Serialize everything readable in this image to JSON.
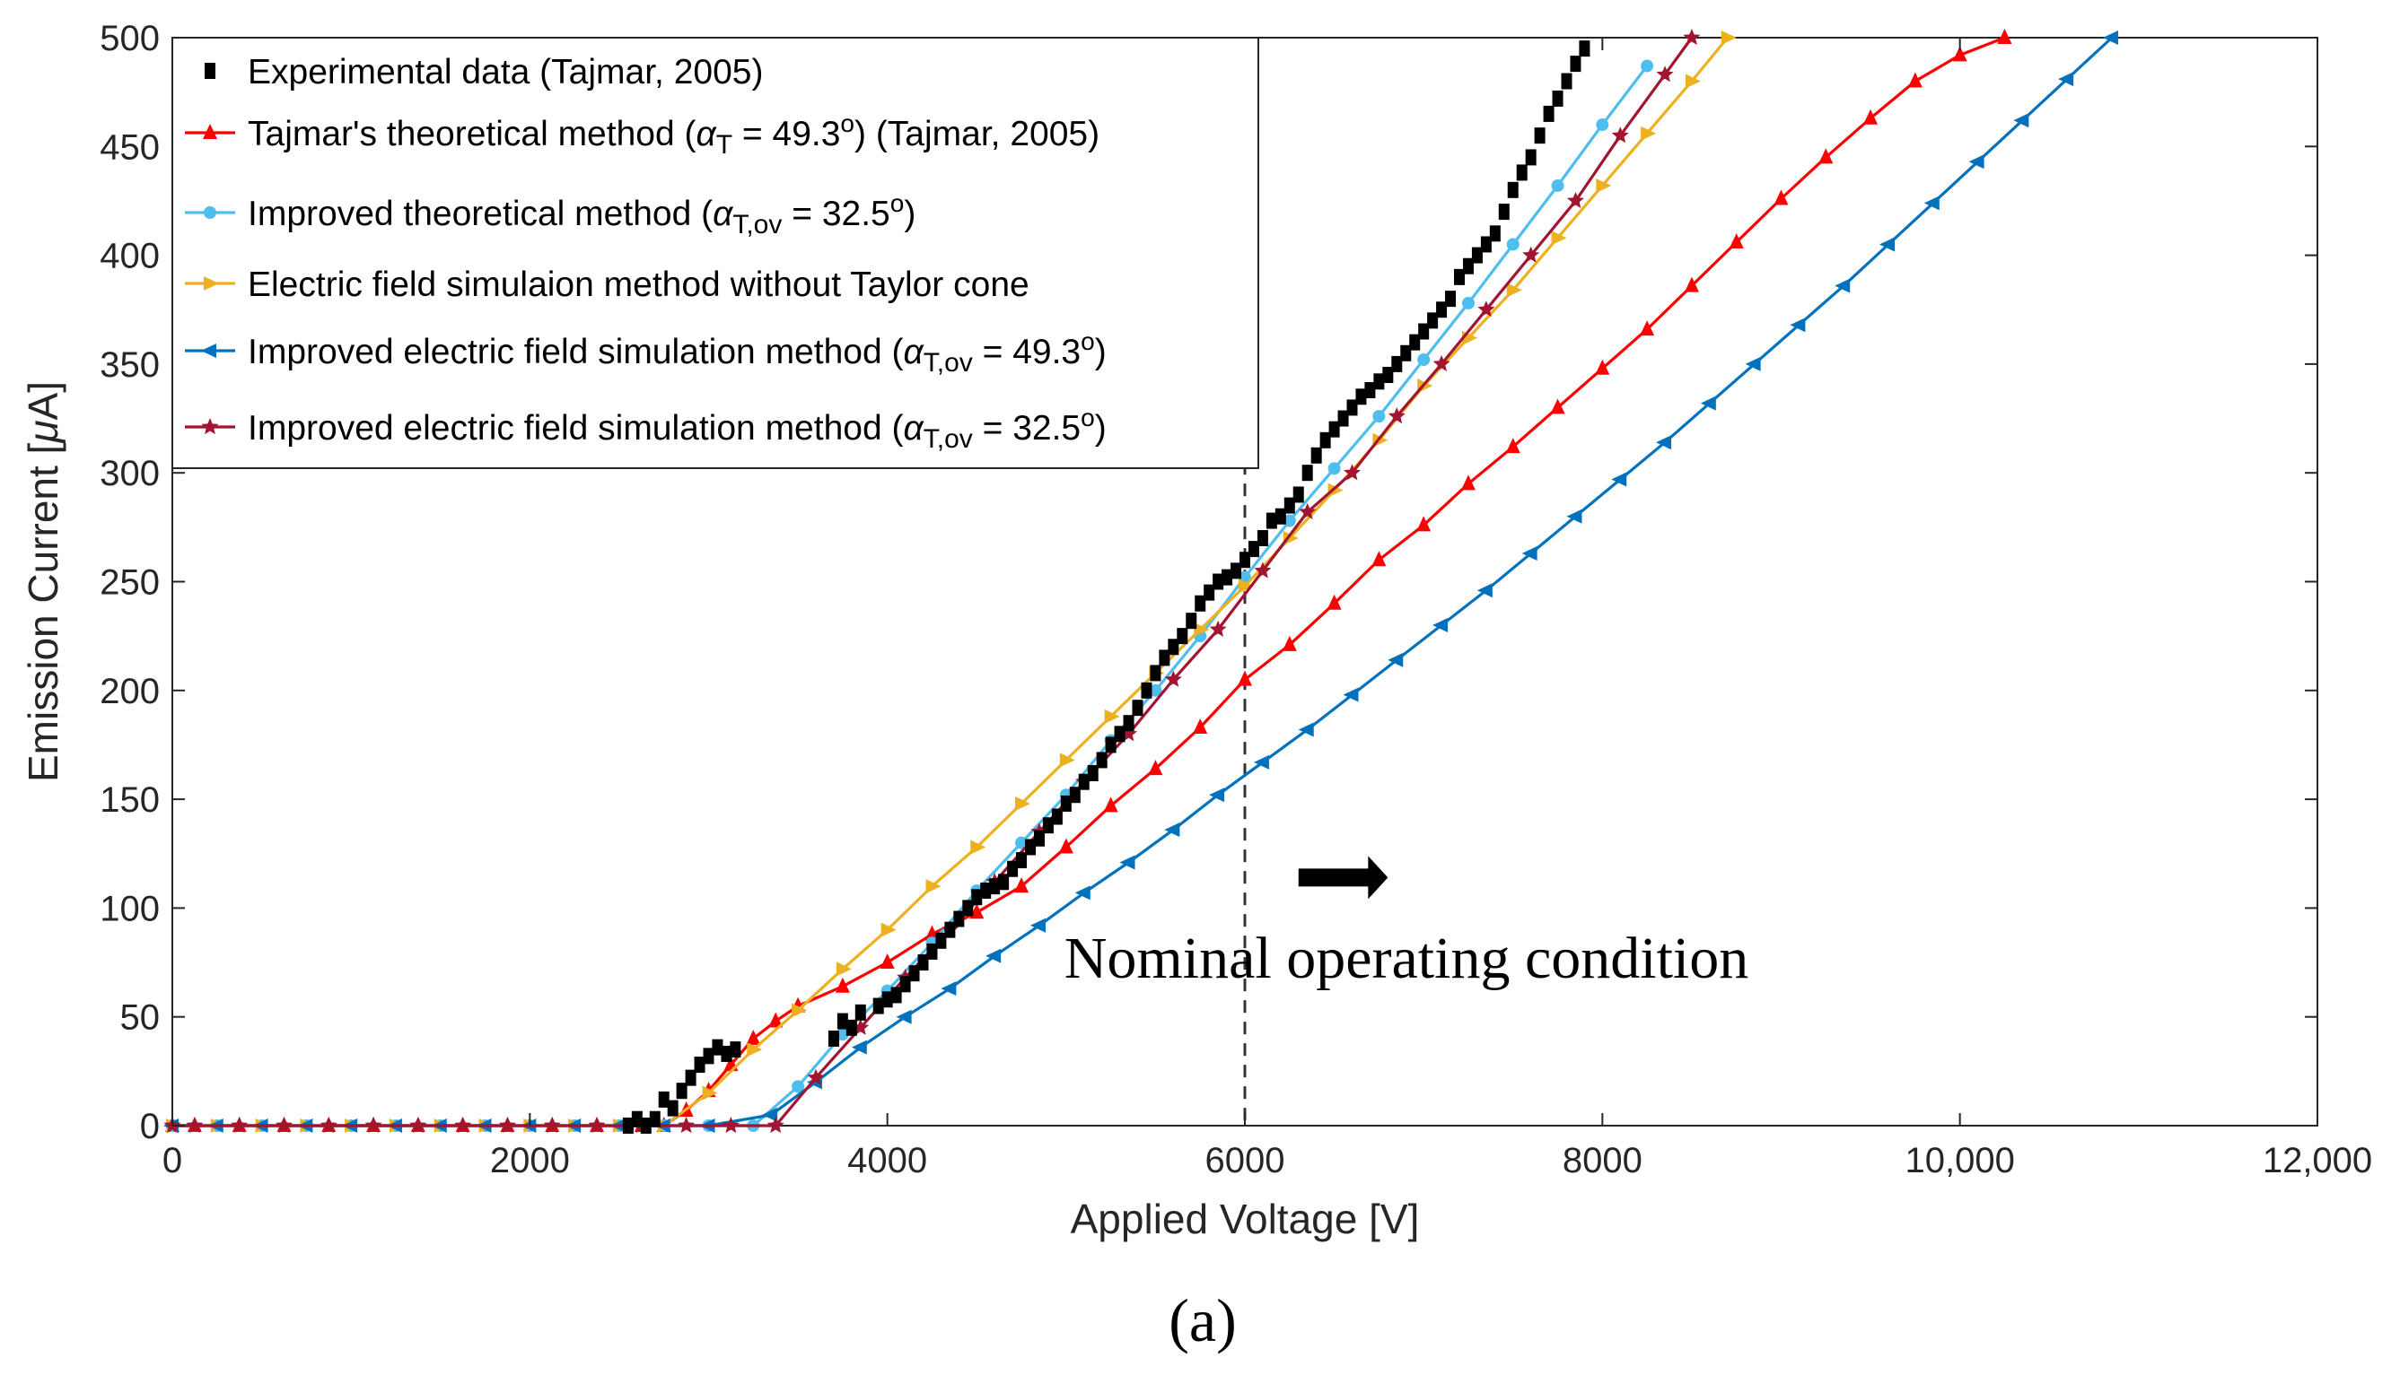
{
  "chart_data": {
    "type": "line",
    "title": "",
    "xlabel": "Applied Voltage [V]",
    "ylabel_parts": [
      "Emission Current [",
      "μ",
      "A]"
    ],
    "xlim": [
      0,
      12000
    ],
    "ylim": [
      0,
      500
    ],
    "xticks": [
      0,
      2000,
      4000,
      6000,
      8000,
      10000,
      12000
    ],
    "xtick_labels": [
      "0",
      "2000",
      "4000",
      "6000",
      "8000",
      "10,000",
      "12,000"
    ],
    "yticks": [
      0,
      50,
      100,
      150,
      200,
      250,
      300,
      350,
      400,
      450,
      500
    ],
    "ytick_labels": [
      "0",
      "50",
      "100",
      "150",
      "200",
      "250",
      "300",
      "350",
      "400",
      "450",
      "500"
    ],
    "grid": false,
    "legend_position": "top-left",
    "series": [
      {
        "name": "Experimental data (Tajmar, 2005)",
        "legend_parts": [
          {
            "t": "Experimental data (Tajmar, 2005)"
          }
        ],
        "color": "#000000",
        "marker": "square",
        "line": false,
        "x": [
          2550,
          2600,
          2650,
          2700,
          2750,
          2800,
          2850,
          2900,
          2950,
          3000,
          3050,
          3100,
          3150,
          3700,
          3750,
          3800,
          3850,
          3950,
          4000,
          4050,
          4100,
          4150,
          4200,
          4250,
          4300,
          4350,
          4400,
          4450,
          4500,
          4550,
          4600,
          4650,
          4700,
          4750,
          4800,
          4850,
          4900,
          4950,
          5000,
          5050,
          5100,
          5150,
          5200,
          5250,
          5300,
          5350,
          5400,
          5450,
          5500,
          5550,
          5600,
          5650,
          5700,
          5750,
          5800,
          5850,
          5900,
          5950,
          6000,
          6050,
          6100,
          6150,
          6200,
          6250,
          6300,
          6350,
          6400,
          6450,
          6500,
          6550,
          6600,
          6650,
          6700,
          6750,
          6800,
          6850,
          6900,
          6950,
          7000,
          7050,
          7100,
          7150,
          7200,
          7250,
          7300,
          7350,
          7400,
          7450,
          7500,
          7550,
          7600,
          7650,
          7700,
          7750,
          7800,
          7850,
          7900
        ],
        "y": [
          0,
          3,
          0,
          3,
          12,
          8,
          16,
          22,
          28,
          32,
          36,
          33,
          35,
          40,
          48,
          45,
          52,
          55,
          58,
          60,
          65,
          70,
          75,
          80,
          85,
          90,
          95,
          100,
          105,
          108,
          110,
          112,
          118,
          122,
          128,
          132,
          138,
          142,
          148,
          152,
          158,
          162,
          168,
          175,
          180,
          185,
          192,
          200,
          208,
          215,
          220,
          225,
          232,
          240,
          245,
          250,
          252,
          255,
          260,
          265,
          270,
          278,
          280,
          285,
          290,
          300,
          308,
          315,
          320,
          325,
          330,
          335,
          338,
          342,
          345,
          350,
          355,
          360,
          365,
          370,
          375,
          380,
          390,
          395,
          400,
          405,
          410,
          420,
          430,
          438,
          445,
          455,
          465,
          472,
          480,
          488,
          495
        ]
      },
      {
        "name": "Tajmar's theoretical method (αT = 49.3o) (Tajmar, 2005)",
        "legend_parts": [
          {
            "t": "Tajmar's theoretical method ("
          },
          {
            "t": "α",
            "i": true
          },
          {
            "t": "T",
            "sub": true
          },
          {
            "t": " = 49.3"
          },
          {
            "t": "o",
            "sup": true
          },
          {
            "t": ") (Tajmar, 2005)"
          }
        ],
        "color": "#ff0000",
        "marker": "triangle-up",
        "line": true,
        "x": [
          0,
          125,
          375,
          625,
          875,
          1125,
          1375,
          1625,
          1875,
          2125,
          2375,
          2625,
          2750,
          2875,
          3000,
          3125,
          3250,
          3375,
          3500,
          3750,
          4000,
          4250,
          4500,
          4750,
          5000,
          5250,
          5500,
          5750,
          6000,
          6250,
          6500,
          6750,
          7000,
          7250,
          7500,
          7750,
          8000,
          8250,
          8500,
          8750,
          9000,
          9250,
          9500,
          9750,
          10000,
          10250
        ],
        "y": [
          0,
          0,
          0,
          0,
          0,
          0,
          0,
          0,
          0,
          0,
          0,
          0,
          0,
          7,
          16,
          28,
          40,
          48,
          55,
          64,
          75,
          88,
          98,
          110,
          128,
          147,
          164,
          183,
          205,
          221,
          240,
          260,
          276,
          295,
          312,
          330,
          348,
          366,
          386,
          406,
          426,
          445,
          463,
          480,
          492,
          500
        ]
      },
      {
        "name": "Improved theoretical method (αT,ov = 32.5o)",
        "legend_parts": [
          {
            "t": "Improved theoretical method ("
          },
          {
            "t": "α",
            "i": true
          },
          {
            "t": "T,ov",
            "sub": true
          },
          {
            "t": " = 32.5"
          },
          {
            "t": "o",
            "sup": true
          },
          {
            "t": ")"
          }
        ],
        "color": "#4dbeee",
        "marker": "circle",
        "line": true,
        "x": [
          0,
          250,
          500,
          750,
          1000,
          1250,
          1500,
          1750,
          2000,
          2250,
          2500,
          2750,
          3000,
          3250,
          3500,
          3750,
          4000,
          4250,
          4500,
          4750,
          5000,
          5250,
          5500,
          5750,
          6000,
          6250,
          6500,
          6750,
          7000,
          7250,
          7500,
          7750,
          8000,
          8250
        ],
        "y": [
          0,
          0,
          0,
          0,
          0,
          0,
          0,
          0,
          0,
          0,
          0,
          0,
          0,
          0,
          18,
          42,
          62,
          84,
          108,
          130,
          152,
          177,
          200,
          225,
          252,
          278,
          302,
          326,
          352,
          378,
          405,
          432,
          460,
          487
        ]
      },
      {
        "name": "Electric field simulaion method without Taylor cone",
        "legend_parts": [
          {
            "t": "Electric field simulaion method without Taylor cone"
          }
        ],
        "color": "#edb120",
        "marker": "triangle-right",
        "line": true,
        "x": [
          0,
          250,
          500,
          750,
          1000,
          1250,
          1500,
          1750,
          2000,
          2250,
          2500,
          2750,
          3000,
          3250,
          3500,
          3750,
          4000,
          4250,
          4500,
          4750,
          5000,
          5250,
          5500,
          5750,
          6000,
          6250,
          6500,
          6750,
          7000,
          7250,
          7500,
          7750,
          8000,
          8250,
          8500,
          8700
        ],
        "y": [
          0,
          0,
          0,
          0,
          0,
          0,
          0,
          0,
          0,
          0,
          0,
          0,
          15,
          35,
          53,
          72,
          90,
          110,
          128,
          148,
          168,
          188,
          208,
          228,
          248,
          270,
          292,
          315,
          340,
          362,
          384,
          408,
          432,
          456,
          480,
          500
        ]
      },
      {
        "name": "Improved electric field simulation method (αT,ov = 49.3o)",
        "legend_parts": [
          {
            "t": "Improved electric field simulation method ("
          },
          {
            "t": "α",
            "i": true
          },
          {
            "t": "T,ov",
            "sub": true
          },
          {
            "t": " = 49.3"
          },
          {
            "t": "o",
            "sup": true
          },
          {
            "t": ")"
          }
        ],
        "color": "#0072bd",
        "marker": "triangle-left",
        "line": true,
        "x": [
          0,
          250,
          500,
          750,
          1000,
          1250,
          1500,
          1750,
          2000,
          2250,
          2500,
          2750,
          3000,
          3350,
          3600,
          3850,
          4100,
          4350,
          4600,
          4850,
          5100,
          5350,
          5600,
          5850,
          6100,
          6350,
          6600,
          6850,
          7100,
          7350,
          7600,
          7850,
          8100,
          8350,
          8600,
          8850,
          9100,
          9350,
          9600,
          9850,
          10100,
          10350,
          10600,
          10850
        ],
        "y": [
          0,
          0,
          0,
          0,
          0,
          0,
          0,
          0,
          0,
          0,
          0,
          0,
          0,
          5,
          20,
          36,
          50,
          63,
          78,
          92,
          107,
          121,
          136,
          152,
          167,
          182,
          198,
          214,
          230,
          246,
          263,
          280,
          297,
          314,
          332,
          350,
          368,
          386,
          405,
          424,
          443,
          462,
          481,
          500
        ]
      },
      {
        "name": "Improved electric field simulation method (αT,ov = 32.5o)",
        "legend_parts": [
          {
            "t": "Improved electric field simulation method ("
          },
          {
            "t": "α",
            "i": true
          },
          {
            "t": "T,ov",
            "sub": true
          },
          {
            "t": " = 32.5"
          },
          {
            "t": "o",
            "sup": true
          },
          {
            "t": ")"
          }
        ],
        "color": "#a2142f",
        "marker": "star",
        "line": true,
        "x": [
          0,
          125,
          375,
          625,
          875,
          1125,
          1375,
          1625,
          1875,
          2125,
          2375,
          2625,
          2875,
          3125,
          3375,
          3600,
          3850,
          4100,
          4350,
          4600,
          4850,
          5100,
          5350,
          5600,
          5850,
          6100,
          6350,
          6600,
          6850,
          7100,
          7350,
          7600,
          7850,
          8100,
          8350,
          8500
        ],
        "y": [
          0,
          0,
          0,
          0,
          0,
          0,
          0,
          0,
          0,
          0,
          0,
          0,
          0,
          0,
          0,
          22,
          45,
          68,
          90,
          112,
          135,
          158,
          180,
          205,
          228,
          255,
          282,
          300,
          326,
          350,
          375,
          400,
          425,
          455,
          483,
          500
        ]
      }
    ],
    "reference_line": {
      "x": 6000,
      "style": "dashed",
      "color": "#333333"
    },
    "annotation": {
      "text": "Nominal operating condition",
      "x": 7500,
      "y": 68
    },
    "arrow": {
      "x_from": 6300,
      "x_to": 6800,
      "y": 114
    },
    "panel_label": "(a)"
  }
}
